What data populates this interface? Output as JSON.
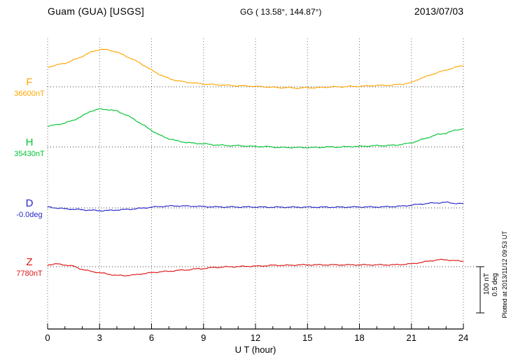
{
  "chart_data": {
    "type": "line",
    "title": "Guam (GUA)  [USGS]",
    "subtitle": "GG ( 13.58°, 144.87°)",
    "date": "2013/07/03",
    "xlabel": "U T (hour)",
    "xlim": [
      0,
      24
    ],
    "xticks_major": [
      0,
      3,
      6,
      9,
      12,
      15,
      18,
      21,
      24
    ],
    "xtick_minor_step_hours": 1,
    "grid": "vertical dotted lines every 3 hours; dotted horizontal baseline per channel",
    "legend_position": "left-of-plot channel labels",
    "x_step_hours": 0.5,
    "scale_bar": {
      "nT": 100,
      "deg": 0.5,
      "nT_label": "100 nT",
      "deg_label": "0.5 deg"
    },
    "plotted_note": "Plotted at 2013/11/12 09:53 UT",
    "series": [
      {
        "name": "F",
        "unit": "nT",
        "color": "#FFA500",
        "baseline_label": "36600nT",
        "baseline_value": 36600,
        "offsets": [
          43,
          47,
          51,
          58,
          66,
          75,
          81,
          80,
          75,
          67,
          58,
          48,
          36,
          26,
          18,
          13,
          10,
          8,
          6,
          5,
          4,
          3,
          2,
          2,
          1,
          0,
          -1,
          -2,
          -2,
          -3,
          -2,
          -2,
          -1,
          0,
          0,
          1,
          1,
          2,
          3,
          3,
          4,
          6,
          9,
          18,
          24,
          31,
          36,
          42,
          46
        ]
      },
      {
        "name": "H",
        "unit": "nT",
        "color": "#00C433",
        "baseline_label": "35430nT",
        "baseline_value": 35430,
        "offsets": [
          45,
          48,
          52,
          58,
          67,
          78,
          82,
          81,
          78,
          70,
          60,
          48,
          36,
          25,
          18,
          13,
          10,
          8,
          7,
          5,
          4,
          3,
          3,
          2,
          1,
          1,
          0,
          -1,
          -1,
          -1,
          -1,
          -1,
          0,
          0,
          0,
          1,
          1,
          2,
          3,
          3,
          4,
          6,
          9,
          15,
          21,
          27,
          30,
          36,
          40
        ]
      },
      {
        "name": "D",
        "unit": "deg",
        "color": "#2525CC",
        "baseline_label": "-0.0deg",
        "baseline_value": -0.0,
        "offsets": [
          0.01,
          0.0,
          -0.01,
          -0.015,
          -0.02,
          -0.025,
          -0.03,
          -0.028,
          -0.022,
          -0.018,
          -0.01,
          -0.002,
          0.008,
          0.015,
          0.02,
          0.022,
          0.02,
          0.018,
          0.015,
          0.012,
          0.01,
          0.01,
          0.01,
          0.01,
          0.01,
          0.008,
          0.008,
          0.008,
          0.008,
          0.008,
          0.008,
          0.008,
          0.008,
          0.008,
          0.008,
          0.01,
          0.01,
          0.01,
          0.01,
          0.012,
          0.015,
          0.02,
          0.03,
          0.04,
          0.05,
          0.055,
          0.06,
          0.05,
          0.045
        ]
      },
      {
        "name": "Z",
        "unit": "nT",
        "color": "#DD1414",
        "baseline_label": "7780nT",
        "baseline_value": 7780,
        "offsets": [
          4,
          6,
          4,
          1,
          -6,
          -10,
          -13,
          -16,
          -19,
          -19,
          -18,
          -15,
          -13,
          -11,
          -10,
          -8,
          -7,
          -5,
          -4,
          -2,
          -1,
          0,
          0,
          1,
          1,
          2,
          3,
          3,
          3,
          4,
          4,
          4,
          4,
          4,
          4,
          4,
          4,
          4,
          4,
          4,
          4,
          5,
          6,
          9,
          12,
          15,
          15,
          13,
          12
        ]
      }
    ]
  }
}
